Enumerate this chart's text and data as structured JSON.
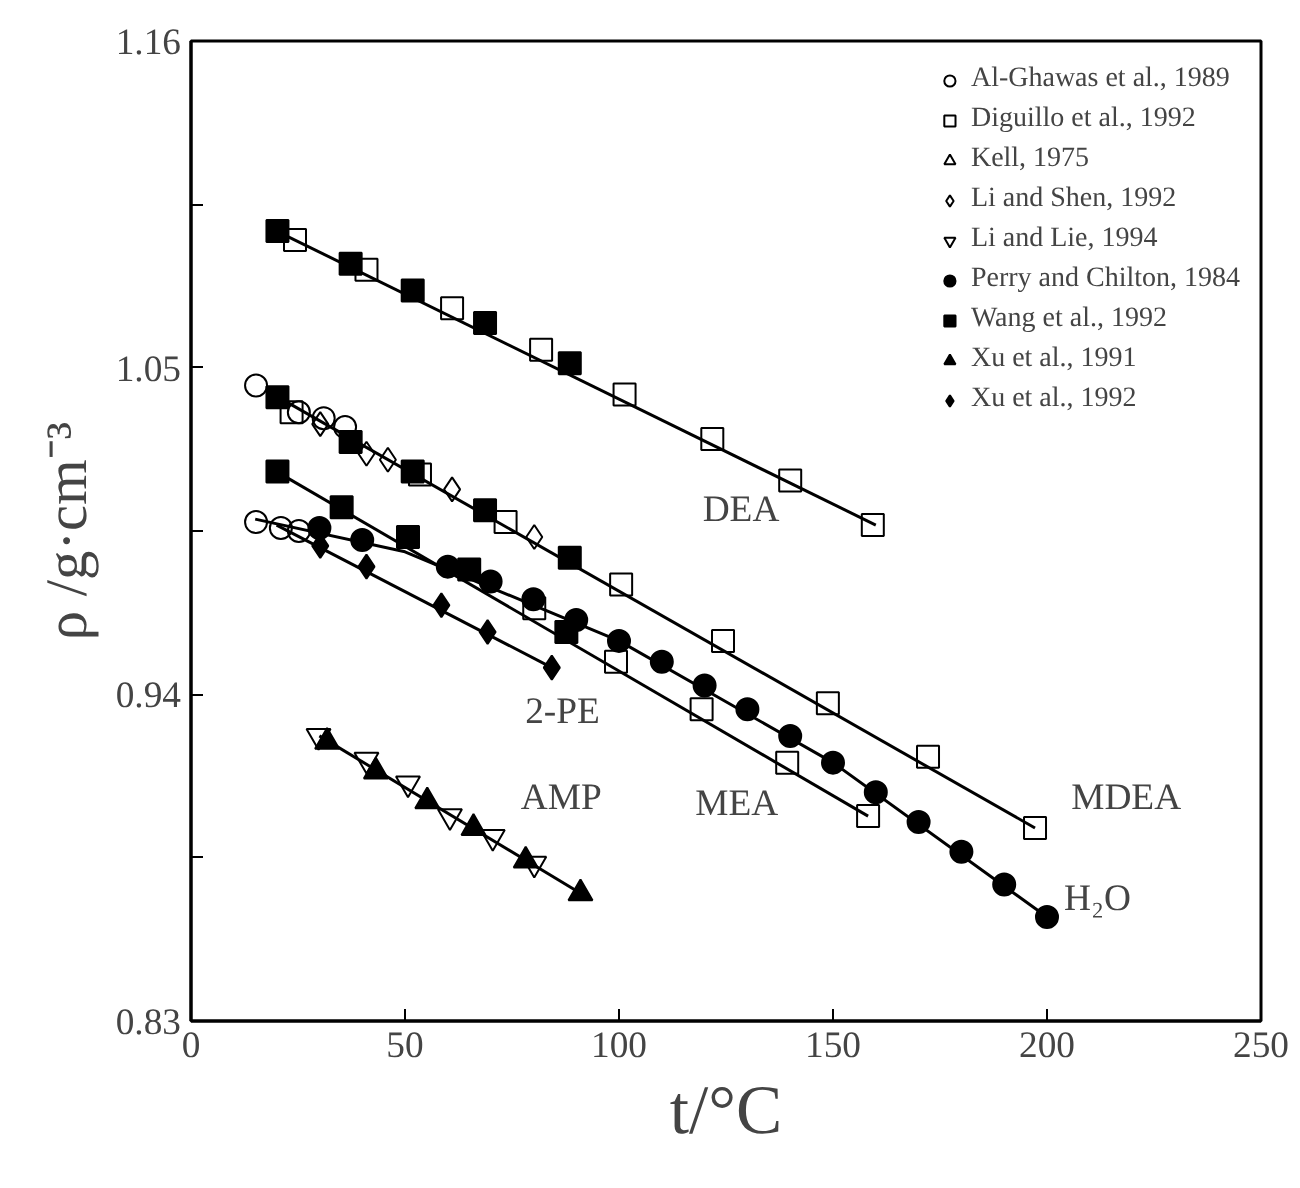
{
  "chart_data": {
    "type": "scatter",
    "xlabel": "t/°C",
    "ylabel": "ρ /g·cm⁻³",
    "xlim": [
      0,
      250
    ],
    "ylim": [
      0.83,
      1.16
    ],
    "xticks": [
      0,
      50,
      100,
      150,
      200,
      250
    ],
    "yticks": [
      0.83,
      {
        "value": 0.885,
        "label": null
      },
      0.94,
      {
        "value": 0.995,
        "label": null
      },
      1.05,
      {
        "value": 1.105,
        "label": null
      },
      1.16
    ],
    "grid": false,
    "legend": "top right",
    "series": [
      {
        "name": "Al-Ghawas et al., 1989",
        "color": "#000000",
        "marker": "circle-open",
        "x": [
          15.2,
          25.2,
          31,
          36,
          15.2,
          21,
          25.2
        ],
        "values": [
          1.044,
          1.035,
          1.033,
          1.03,
          0.998,
          0.996,
          0.995
        ]
      },
      {
        "name": "Diguillo et al., 1992",
        "color": "#000000",
        "marker": "square-open",
        "x": [
          24.3,
          41,
          61,
          81.8,
          101.3,
          121.8,
          140,
          159.3,
          23.5,
          53.5,
          73.5,
          100.5,
          124.3,
          148.8,
          172.2,
          197.2,
          80.2,
          99.3,
          119.3,
          139.3,
          158.2
        ],
        "values": [
          1.093,
          1.083,
          1.07,
          1.056,
          1.041,
          1.026,
          1.012,
          0.997,
          1.035,
          1.014,
          0.998,
          0.977,
          0.958,
          0.937,
          0.919,
          0.895,
          0.969,
          0.951,
          0.935,
          0.917,
          0.899
        ]
      },
      {
        "name": "Kell, 1975",
        "color": "#000000",
        "marker": "triangle-open"
      },
      {
        "name": "Li and Shen, 1992",
        "color": "#000000",
        "marker": "diamond-open",
        "x": [
          30.2,
          41,
          46,
          61,
          80.2
        ],
        "values": [
          1.031,
          1.021,
          1.019,
          1.009,
          0.993
        ]
      },
      {
        "name": "Li and Lie, 1994",
        "color": "#000000",
        "marker": "triangle-down-open",
        "x": [
          29.8,
          41,
          50.7,
          60.5,
          70.5,
          80.2
        ],
        "values": [
          0.926,
          0.918,
          0.91,
          0.899,
          0.892,
          0.883
        ]
      },
      {
        "name": "Perry and Chilton, 1984",
        "color": "#000000",
        "marker": "circle",
        "x": [
          30,
          40,
          50,
          60,
          70,
          80,
          90,
          100,
          110,
          120,
          130,
          140,
          150,
          160,
          170,
          180,
          190,
          200
        ],
        "values": [
          0.996,
          0.992,
          null,
          0.983,
          0.978,
          0.972,
          0.965,
          0.958,
          0.951,
          0.943,
          0.935,
          0.926,
          0.917,
          0.907,
          0.897,
          0.887,
          0.876,
          0.865
        ]
      },
      {
        "name": "Wang et al., 1992",
        "color": "#000000",
        "marker": "square",
        "x": [
          20.2,
          37.3,
          51.8,
          68.7,
          88.5,
          20.2,
          37.3,
          51.8,
          68.7,
          88.5,
          20.2,
          35.2,
          50.7,
          65,
          87.7
        ],
        "values": [
          1.096,
          1.085,
          1.076,
          1.065,
          1.0515,
          1.04,
          1.025,
          1.015,
          1.002,
          0.986,
          1.015,
          1.003,
          0.993,
          0.982,
          0.961
        ]
      },
      {
        "name": "Xu et al., 1991",
        "color": "#000000",
        "marker": "triangle",
        "x": [
          31.8,
          43.2,
          55.2,
          66,
          78.2,
          91
        ],
        "values": [
          0.924,
          0.914,
          0.904,
          0.895,
          0.884,
          0.873
        ]
      },
      {
        "name": "Xu et al., 1992",
        "color": "#000000",
        "marker": "diamond",
        "x": [
          30.2,
          41,
          58.5,
          69.3,
          84.3
        ],
        "values": [
          0.99,
          0.983,
          0.97,
          0.961,
          0.949
        ]
      },
      {
        "type": "line",
        "color": "#000000",
        "x": [
          20,
          160
        ],
        "values": [
          1.096,
          0.997
        ]
      },
      {
        "type": "line",
        "color": "#000000",
        "x": [
          18,
          197.2
        ],
        "values": [
          1.042,
          0.895
        ]
      },
      {
        "type": "line",
        "color": "#000000",
        "x": [
          20,
          158.2
        ],
        "values": [
          1.015,
          0.899
        ]
      },
      {
        "type": "line",
        "color": "#000000",
        "x": [
          15,
          50,
          100,
          150,
          200
        ],
        "values": [
          0.999,
          0.988,
          0.958,
          0.917,
          0.865
        ]
      },
      {
        "type": "line",
        "color": "#000000",
        "x": [
          20,
          84.3
        ],
        "values": [
          0.997,
          0.949
        ]
      },
      {
        "type": "line",
        "color": "#000000",
        "x": [
          30,
          91
        ],
        "values": [
          0.926,
          0.873
        ]
      }
    ],
    "annotations": [
      "DEA",
      "MDEA",
      "MEA",
      "H₂O",
      "2-PE",
      "AMP"
    ]
  }
}
